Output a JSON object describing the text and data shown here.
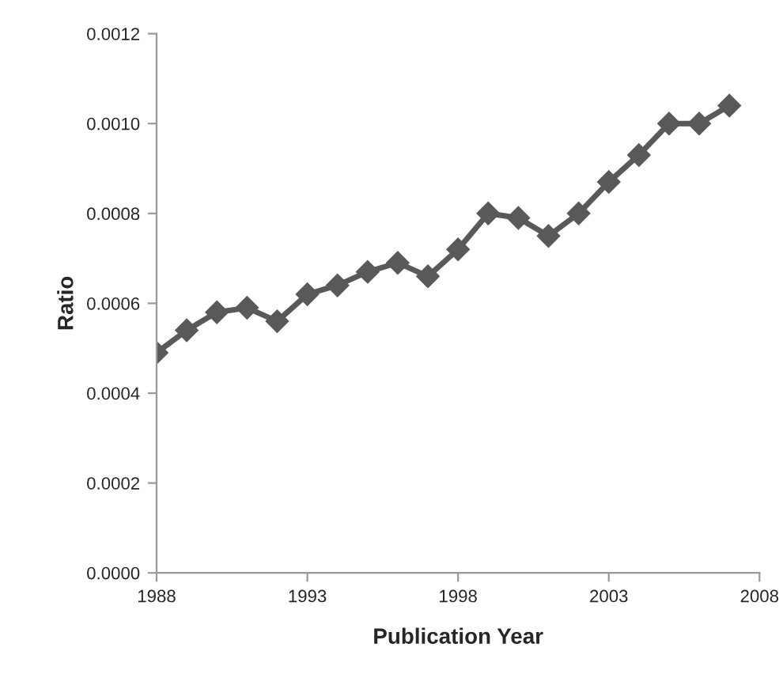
{
  "chart_data": {
    "type": "line",
    "xlabel": "Publication Year",
    "ylabel": "Ratio",
    "x": [
      1988,
      1989,
      1990,
      1991,
      1992,
      1993,
      1994,
      1995,
      1996,
      1997,
      1998,
      1999,
      2000,
      2001,
      2002,
      2003,
      2004,
      2005,
      2006,
      2007
    ],
    "series": [
      {
        "color": "#595959",
        "values": [
          0.00049,
          0.00054,
          0.00058,
          0.00059,
          0.00056,
          0.00062,
          0.00064,
          0.00067,
          0.00069,
          0.00066,
          0.00072,
          0.0008,
          0.00079,
          0.00075,
          0.0008,
          0.00087,
          0.00093,
          0.001,
          0.001,
          0.00104
        ]
      }
    ],
    "xlim": [
      1988,
      2008
    ],
    "xticks": [
      1988,
      1993,
      1998,
      2003,
      2008
    ],
    "ylim": [
      0,
      0.0012
    ],
    "yticks": [
      {
        "value": 0,
        "label": "0.0000"
      },
      {
        "value": 0.0002,
        "label": "0.0002"
      },
      {
        "value": 0.0004,
        "label": "0.0004"
      },
      {
        "value": 0.0006,
        "label": "0.0006"
      },
      {
        "value": 0.0008,
        "label": "0.0008"
      },
      {
        "value": 0.001,
        "label": "0.0010"
      },
      {
        "value": 0.0012,
        "label": "0.0012"
      }
    ],
    "marker": "diamond",
    "line_style": "solid",
    "grid": false,
    "legend": false
  }
}
